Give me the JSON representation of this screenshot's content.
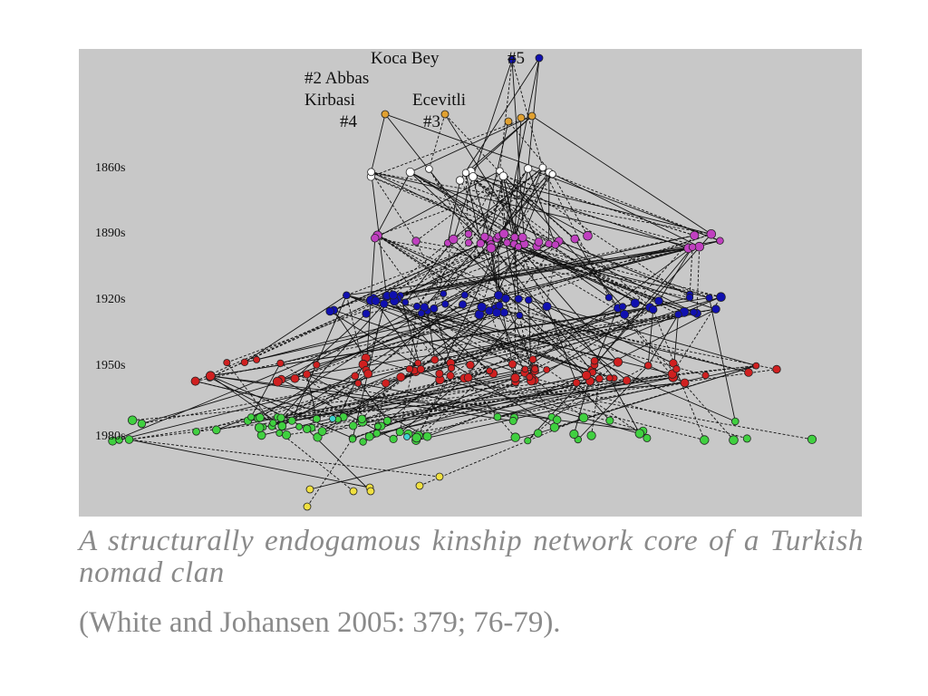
{
  "figure": {
    "era_labels": [
      "1860s",
      "1890s",
      "1920s",
      "1950s",
      "1980s"
    ],
    "clan_labels": {
      "koca_bey": "Koca Bey",
      "num5": "#5",
      "abbas": "#2 Abbas",
      "kirbasi": "Kirbasi",
      "num4": "#4",
      "ecevitli": "Ecevitli",
      "num3": "#3"
    },
    "colors": {
      "background": "#c8c8c8",
      "founders": "#e0a030",
      "gen_1860s": "#ffffff",
      "gen_1890s": "#c040c0",
      "gen_1920s": "#1010b0",
      "gen_1950s": "#d02020",
      "gen_1980s": "#40d040",
      "descendants": "#f0e040",
      "edge": "#111111"
    }
  },
  "caption": {
    "title": "A structurally endogamous kinship network core of a Turkish nomad clan",
    "source": "(White and Johansen 2005: 379; 76-79)."
  }
}
